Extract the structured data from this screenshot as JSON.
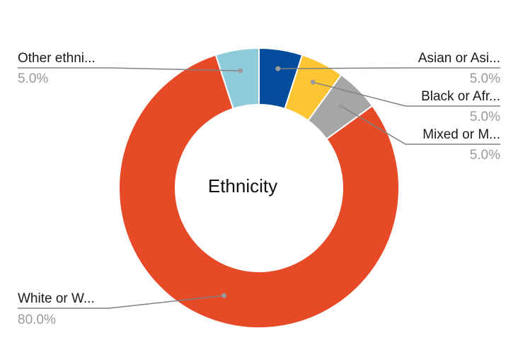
{
  "chart_data": {
    "type": "pie",
    "variant": "donut",
    "title": "Ethnicity",
    "slices": [
      {
        "label": "Asian or Asi...",
        "value": 5.0,
        "pct_label": "5.0%",
        "color": "#034C9C"
      },
      {
        "label": "Black or Afr...",
        "value": 5.0,
        "pct_label": "5.0%",
        "color": "#FBC534"
      },
      {
        "label": "Mixed or M...",
        "value": 5.0,
        "pct_label": "5.0%",
        "color": "#A6A6A6"
      },
      {
        "label": "White or W...",
        "value": 80.0,
        "pct_label": "80.0%",
        "color": "#E64A27"
      },
      {
        "label": "Other ethni...",
        "value": 5.0,
        "pct_label": "5.0%",
        "color": "#8ECCD9"
      }
    ],
    "legend": "none",
    "data_labels": "outside with leader lines",
    "leader_color": "#808080"
  }
}
